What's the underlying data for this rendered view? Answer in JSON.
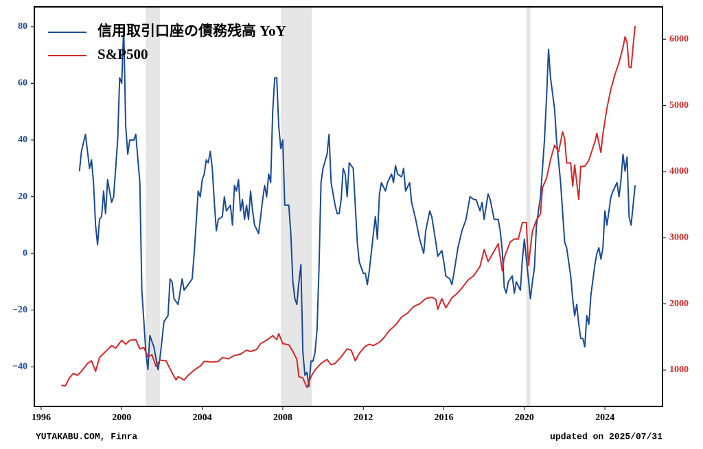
{
  "chart_data": {
    "type": "line",
    "xlim": [
      1995.66,
      2026.86
    ],
    "xticks": [
      1996,
      2000,
      2004,
      2008,
      2012,
      2016,
      2020,
      2024
    ],
    "ylim": [
      -54,
      87
    ],
    "yticks": [
      {
        "value": -40,
        "label": "−40"
      },
      {
        "value": -20,
        "label": "−20"
      },
      0,
      20,
      40,
      60,
      80
    ],
    "y2lim": [
      450,
      6490
    ],
    "y2ticks": [
      1000,
      2000,
      3000,
      4000,
      5000,
      6000
    ],
    "shaded_periods": [
      [
        2001.2,
        2001.9
      ],
      [
        2007.9,
        2009.45
      ],
      [
        2020.1,
        2020.3
      ]
    ],
    "shade_color": "#e6e6e6",
    "legend": "upper left",
    "footer_left": "YUTAKABU.COM, Finra",
    "footer_right": "updated on 2025/07/31",
    "series": [
      {
        "name": "信用取引口座の債務残高 YoY",
        "color": "#1a4a94",
        "axis": "y",
        "x": [
          1997.9,
          1998.0,
          1998.2,
          1998.4,
          1998.5,
          1998.6,
          1998.7,
          1998.8,
          1998.9,
          1999.0,
          1999.1,
          1999.2,
          1999.3,
          1999.5,
          1999.6,
          1999.8,
          1999.9,
          2000.0,
          2000.1,
          2000.2,
          2000.3,
          2000.4,
          2000.6,
          2000.7,
          2000.9,
          2001.0,
          2001.2,
          2001.3,
          2001.4,
          2001.6,
          2001.8,
          2001.9,
          2002.1,
          2002.3,
          2002.4,
          2002.5,
          2002.6,
          2002.8,
          2003.0,
          2003.1,
          2003.3,
          2003.5,
          2003.6,
          2003.8,
          2003.9,
          2004.0,
          2004.1,
          2004.2,
          2004.3,
          2004.4,
          2004.5,
          2004.6,
          2004.7,
          2004.8,
          2005.0,
          2005.1,
          2005.2,
          2005.4,
          2005.5,
          2005.6,
          2005.7,
          2005.8,
          2005.9,
          2006.0,
          2006.1,
          2006.2,
          2006.3,
          2006.4,
          2006.5,
          2006.6,
          2006.8,
          2007.0,
          2007.1,
          2007.2,
          2007.3,
          2007.4,
          2007.5,
          2007.6,
          2007.7,
          2007.8,
          2007.9,
          2008.0,
          2008.1,
          2008.3,
          2008.4,
          2008.5,
          2008.6,
          2008.7,
          2008.8,
          2008.9,
          2009.0,
          2009.1,
          2009.2,
          2009.3,
          2009.4,
          2009.5,
          2009.6,
          2009.7,
          2009.8,
          2009.9,
          2010.0,
          2010.2,
          2010.3,
          2010.4,
          2010.6,
          2010.7,
          2010.8,
          2010.9,
          2011.0,
          2011.1,
          2011.2,
          2011.3,
          2011.5,
          2011.6,
          2011.7,
          2011.8,
          2012.0,
          2012.1,
          2012.2,
          2012.3,
          2012.5,
          2012.6,
          2012.7,
          2012.8,
          2012.9,
          2013.1,
          2013.2,
          2013.4,
          2013.5,
          2013.6,
          2013.7,
          2013.9,
          2014.0,
          2014.1,
          2014.3,
          2014.4,
          2014.6,
          2014.8,
          2015.0,
          2015.1,
          2015.3,
          2015.4,
          2015.6,
          2015.7,
          2015.9,
          2016.0,
          2016.1,
          2016.3,
          2016.4,
          2016.5,
          2016.7,
          2016.9,
          2017.1,
          2017.3,
          2017.5,
          2017.6,
          2017.8,
          2017.9,
          2018.0,
          2018.2,
          2018.3,
          2018.5,
          2018.7,
          2018.8,
          2018.9,
          2019.0,
          2019.1,
          2019.2,
          2019.4,
          2019.5,
          2019.6,
          2019.8,
          2019.9,
          2020.0,
          2020.1,
          2020.3,
          2020.4,
          2020.5,
          2020.6,
          2020.8,
          2020.9,
          2021.0,
          2021.1,
          2021.2,
          2021.3,
          2021.5,
          2021.6,
          2021.8,
          2022.0,
          2022.1,
          2022.3,
          2022.4,
          2022.5,
          2022.6,
          2022.7,
          2022.8,
          2022.9,
          2023.0,
          2023.1,
          2023.2,
          2023.3,
          2023.5,
          2023.6,
          2023.7,
          2023.8,
          2023.9,
          2024.0,
          2024.1,
          2024.3,
          2024.4,
          2024.6,
          2024.7,
          2024.8,
          2024.9,
          2025.0,
          2025.1,
          2025.2,
          2025.3,
          2025.5
        ],
        "values": [
          29,
          36,
          42,
          30,
          33,
          25,
          10,
          3,
          12,
          13,
          22,
          14,
          26,
          18,
          20,
          40,
          62,
          60,
          80,
          45,
          35,
          40,
          40,
          42,
          25,
          -13,
          -35,
          -41,
          -29,
          -33,
          -41,
          -37,
          -24,
          -22,
          -9,
          -10,
          -16,
          -18,
          -9,
          -13,
          -11,
          -9,
          0,
          22,
          20,
          26,
          28,
          33,
          32,
          36,
          30,
          18,
          8,
          12,
          13,
          20,
          15,
          17,
          10,
          24,
          22,
          26,
          15,
          19,
          12,
          17,
          12,
          22,
          15,
          10,
          7,
          19,
          24,
          20,
          28,
          25,
          50,
          62,
          62,
          45,
          37,
          40,
          17,
          17,
          7,
          -10,
          -16,
          -18,
          -10,
          -4,
          -35,
          -43,
          -42,
          -47,
          -38,
          -38,
          -35,
          -27,
          -5,
          25,
          30,
          35,
          42,
          25,
          17,
          14,
          14,
          19,
          30,
          28,
          20,
          32,
          30,
          17,
          4,
          -3,
          -7,
          -7,
          -11,
          -6,
          7,
          13,
          5,
          21,
          25,
          22,
          25,
          28,
          25,
          31,
          28,
          27,
          30,
          22,
          25,
          18,
          12,
          5,
          0,
          8,
          15,
          13,
          4,
          -1,
          1,
          -3,
          -8,
          -9,
          -11,
          -7,
          2,
          8,
          12,
          20,
          19,
          19,
          15,
          18,
          12,
          21,
          19,
          12,
          12,
          8,
          1,
          -12,
          -14,
          -10,
          -8,
          -14,
          -10,
          -13,
          -2,
          5,
          -2,
          -16,
          -10,
          -5,
          10,
          20,
          30,
          40,
          55,
          72,
          62,
          51,
          40,
          25,
          4,
          2,
          -8,
          -16,
          -22,
          -18,
          -25,
          -30,
          -30,
          -33,
          -22,
          -25,
          -15,
          -4,
          0,
          2,
          -2,
          2,
          15,
          10,
          20,
          22,
          25,
          20,
          26,
          35,
          29,
          34,
          13,
          10,
          24
        ]
      },
      {
        "name": "S&P500",
        "color": "#d62728",
        "axis": "y2",
        "x": [
          1997.0,
          1997.2,
          1997.4,
          1997.6,
          1997.8,
          1998.0,
          1998.3,
          1998.5,
          1998.7,
          1998.9,
          1999.2,
          1999.5,
          1999.7,
          2000.0,
          2000.2,
          2000.4,
          2000.7,
          2000.9,
          2001.1,
          2001.3,
          2001.5,
          2001.7,
          2001.9,
          2002.2,
          2002.5,
          2002.7,
          2002.8,
          2003.1,
          2003.3,
          2003.6,
          2003.9,
          2004.1,
          2004.5,
          2004.8,
          2005.0,
          2005.3,
          2005.6,
          2005.9,
          2006.2,
          2006.4,
          2006.7,
          2006.9,
          2007.2,
          2007.5,
          2007.7,
          2007.8,
          2008.0,
          2008.3,
          2008.5,
          2008.7,
          2008.8,
          2009.0,
          2009.2,
          2009.4,
          2009.6,
          2009.9,
          2010.2,
          2010.4,
          2010.6,
          2010.9,
          2011.2,
          2011.4,
          2011.6,
          2011.8,
          2012.1,
          2012.3,
          2012.5,
          2012.8,
          2013.0,
          2013.3,
          2013.6,
          2013.9,
          2014.2,
          2014.5,
          2014.8,
          2015.1,
          2015.4,
          2015.6,
          2015.7,
          2015.9,
          2016.1,
          2016.4,
          2016.7,
          2016.9,
          2017.2,
          2017.5,
          2017.8,
          2018.0,
          2018.2,
          2018.5,
          2018.7,
          2018.9,
          2019.0,
          2019.3,
          2019.5,
          2019.7,
          2019.9,
          2020.1,
          2020.2,
          2020.4,
          2020.6,
          2020.8,
          2020.9,
          2021.1,
          2021.3,
          2021.5,
          2021.7,
          2021.9,
          2022.0,
          2022.1,
          2022.3,
          2022.4,
          2022.5,
          2022.7,
          2022.8,
          2023.0,
          2023.2,
          2023.5,
          2023.6,
          2023.8,
          2023.9,
          2024.1,
          2024.3,
          2024.5,
          2024.7,
          2024.9,
          2025.0,
          2025.1,
          2025.2,
          2025.3,
          2025.4,
          2025.5
        ],
        "values": [
          770,
          760,
          880,
          950,
          920,
          980,
          1100,
          1140,
          980,
          1190,
          1280,
          1370,
          1330,
          1450,
          1390,
          1450,
          1460,
          1320,
          1340,
          1200,
          1230,
          1060,
          1150,
          1140,
          960,
          850,
          900,
          850,
          920,
          1000,
          1060,
          1130,
          1120,
          1130,
          1190,
          1170,
          1220,
          1240,
          1300,
          1280,
          1310,
          1400,
          1450,
          1520,
          1460,
          1550,
          1400,
          1380,
          1280,
          1160,
          900,
          880,
          735,
          900,
          1000,
          1100,
          1160,
          1080,
          1100,
          1200,
          1320,
          1300,
          1140,
          1250,
          1360,
          1390,
          1370,
          1420,
          1480,
          1600,
          1680,
          1800,
          1860,
          1960,
          2000,
          2080,
          2100,
          2070,
          1920,
          2080,
          1940,
          2090,
          2170,
          2240,
          2360,
          2430,
          2570,
          2820,
          2640,
          2800,
          2910,
          2500,
          2700,
          2940,
          2980,
          2980,
          3230,
          3230,
          2580,
          3100,
          3270,
          3360,
          3760,
          3900,
          4180,
          4400,
          4300,
          4600,
          4500,
          4130,
          4130,
          3780,
          4100,
          3580,
          4080,
          4080,
          4170,
          4450,
          4580,
          4290,
          4570,
          4960,
          5250,
          5470,
          5650,
          5880,
          6040,
          5950,
          5580,
          5570,
          5900,
          6200
        ]
      }
    ]
  }
}
